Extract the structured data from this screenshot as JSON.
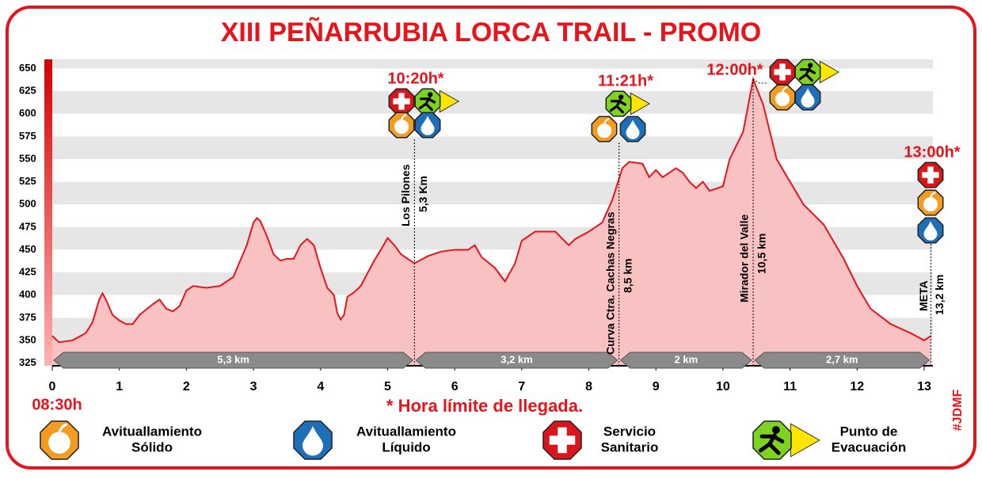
{
  "chart_data": {
    "type": "area",
    "title": "XIII PEÑARRUBIA LORCA TRAIL - PROMO",
    "color": "#e8141b",
    "x": [
      0,
      0.1,
      0.3,
      0.5,
      0.6,
      0.7,
      0.75,
      0.8,
      0.9,
      1.0,
      1.1,
      1.2,
      1.3,
      1.5,
      1.6,
      1.7,
      1.8,
      1.9,
      2.0,
      2.1,
      2.3,
      2.5,
      2.7,
      2.9,
      3.0,
      3.05,
      3.1,
      3.2,
      3.3,
      3.4,
      3.5,
      3.6,
      3.7,
      3.8,
      3.9,
      4.0,
      4.1,
      4.2,
      4.25,
      4.3,
      4.35,
      4.4,
      4.5,
      4.6,
      4.8,
      4.9,
      5.0,
      5.1,
      5.2,
      5.3,
      5.4,
      5.6,
      5.8,
      6.0,
      6.2,
      6.3,
      6.4,
      6.6,
      6.75,
      6.9,
      7.0,
      7.2,
      7.5,
      7.7,
      7.8,
      8.0,
      8.2,
      8.35,
      8.5,
      8.6,
      8.8,
      8.9,
      9.0,
      9.1,
      9.3,
      9.4,
      9.5,
      9.6,
      9.7,
      9.8,
      10.0,
      10.1,
      10.3,
      10.45,
      10.6,
      10.8,
      11.0,
      11.2,
      11.5,
      11.8,
      12.0,
      12.2,
      12.5,
      12.8,
      13.0,
      13.1
    ],
    "values": [
      355,
      348,
      350,
      358,
      370,
      395,
      402,
      395,
      378,
      372,
      368,
      368,
      378,
      390,
      395,
      385,
      382,
      388,
      405,
      410,
      408,
      410,
      420,
      455,
      480,
      485,
      482,
      465,
      445,
      438,
      440,
      440,
      455,
      462,
      455,
      430,
      408,
      400,
      380,
      373,
      378,
      398,
      403,
      410,
      438,
      450,
      463,
      455,
      445,
      440,
      435,
      443,
      448,
      450,
      450,
      455,
      442,
      430,
      415,
      435,
      460,
      470,
      470,
      455,
      462,
      470,
      480,
      505,
      540,
      547,
      545,
      530,
      538,
      530,
      540,
      535,
      525,
      518,
      525,
      515,
      520,
      550,
      580,
      638,
      610,
      550,
      525,
      500,
      478,
      440,
      410,
      385,
      368,
      358,
      350,
      355
    ],
    "xlim": [
      0,
      13.13
    ],
    "ylim": [
      322,
      660
    ],
    "xticks": [
      0,
      1,
      2,
      3,
      4,
      5,
      6,
      7,
      8,
      9,
      10,
      11,
      12,
      13
    ],
    "yticks": [
      325,
      350,
      375,
      400,
      425,
      450,
      475,
      500,
      525,
      550,
      575,
      600,
      625,
      650
    ],
    "grid": true,
    "start_time": "08:30h",
    "note": "* Hora límite de llegada.",
    "signature": "#JDMF",
    "checkpoints": [
      {
        "x": 5.4,
        "time": "10:20h*",
        "name": "Los Pilones",
        "km": "5,3 Km"
      },
      {
        "x": 8.45,
        "time": "11:21h*",
        "name": "Curva Ctra. Cachas Negras",
        "km": "8,5 km"
      },
      {
        "x": 10.45,
        "time": "12:00h*",
        "name": "Mirador del Valle",
        "km": "10,5 km"
      },
      {
        "x": 13.1,
        "time": "13:00h*",
        "name": "META",
        "km": "13,2 km"
      }
    ],
    "segments": [
      {
        "label": "5,3 km",
        "from": 0,
        "to": 5.4
      },
      {
        "label": "3,2 km",
        "from": 5.4,
        "to": 8.45
      },
      {
        "label": "2 km",
        "from": 8.45,
        "to": 10.45
      },
      {
        "label": "2,7 km",
        "from": 10.45,
        "to": 13.1
      }
    ],
    "legend": [
      [
        "Avituallamiento",
        "Sólido"
      ],
      [
        "Avituallamiento",
        "Líquido"
      ],
      [
        "Servicio",
        "Sanitario"
      ],
      [
        "Punto de",
        "Evacuación"
      ]
    ]
  }
}
